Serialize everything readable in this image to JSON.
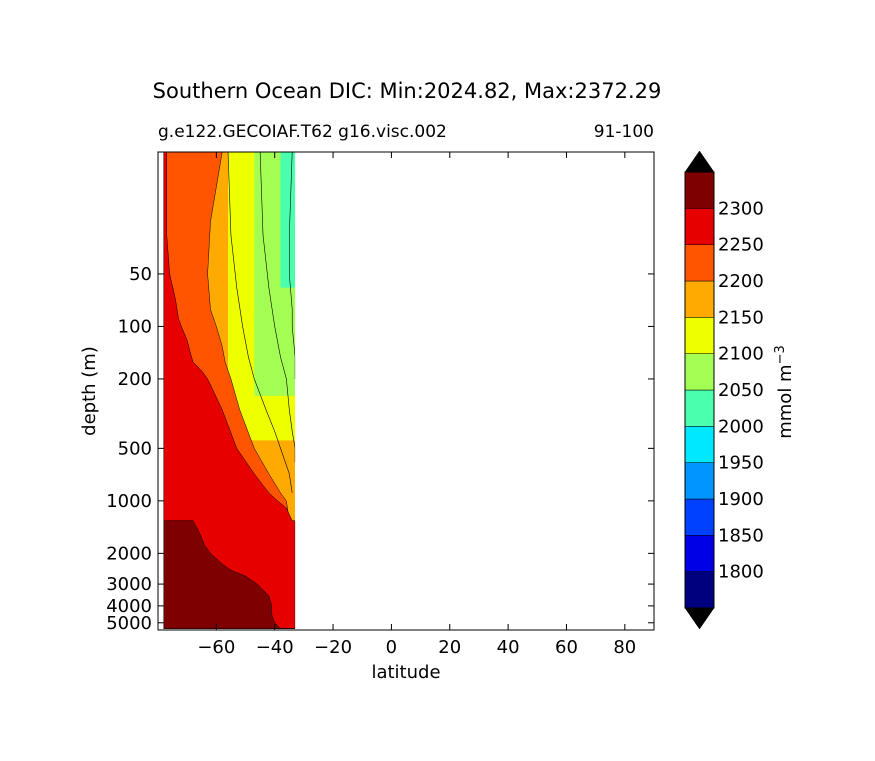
{
  "chart_data": {
    "type": "heatmap",
    "title": "Southern Ocean DIC: Min:2024.82, Max:2372.29",
    "subtitle_left": "g.e122.GECOIAF.T62 g16.visc.002",
    "subtitle_right": "91-100",
    "xlabel": "latitude",
    "ylabel": "depth (m)",
    "xlim": [
      -80,
      90
    ],
    "ylim": [
      10,
      5500
    ],
    "x_ticks": [
      -60,
      -40,
      -20,
      0,
      20,
      40,
      60,
      80
    ],
    "x_tick_labels": [
      "−60",
      "−40",
      "−20",
      "0",
      "20",
      "40",
      "60",
      "80"
    ],
    "y_ticks": [
      50,
      100,
      200,
      500,
      1000,
      2000,
      3000,
      4000,
      5000
    ],
    "y_tick_labels": [
      "50",
      "100",
      "200",
      "500",
      "1000",
      "2000",
      "3000",
      "4000",
      "5000"
    ],
    "colorbar": {
      "label_main": "mmol m",
      "label_sup": "−3",
      "levels": [
        1800,
        1850,
        1900,
        1950,
        2000,
        2050,
        2100,
        2150,
        2200,
        2250,
        2300
      ],
      "level_labels": [
        "1800",
        "1850",
        "1900",
        "1950",
        "2000",
        "2050",
        "2100",
        "2150",
        "2200",
        "2250",
        "2300"
      ],
      "colors": [
        "#00007f",
        "#0000e6",
        "#0040ff",
        "#0095ff",
        "#00e8ff",
        "#4affad",
        "#a3ff54",
        "#eeff00",
        "#ffaa00",
        "#ff5500",
        "#e60000",
        "#7f0000"
      ],
      "extend_color": "#000000"
    },
    "fill_regions": [
      {
        "level": 2250,
        "color": "#ff5500",
        "depth": [
          10,
          25,
          50,
          80,
          100,
          130,
          160,
          200,
          300,
          500,
          700,
          900,
          1000,
          1300
        ],
        "lat": [
          -58,
          -62,
          -63,
          -62,
          -60,
          -58,
          -57,
          -55,
          -52,
          -47,
          -42,
          -38,
          -36,
          -35
        ]
      },
      {
        "level": 2300,
        "color": "#e60000",
        "depth": [
          10,
          30,
          50,
          70,
          90,
          100,
          120,
          140,
          160,
          180,
          200,
          300,
          500,
          700,
          900,
          1000,
          1100,
          1300
        ],
        "lat": [
          -77,
          -77,
          -76,
          -74,
          -73,
          -72,
          -70,
          -69,
          -68,
          -65,
          -63,
          -58,
          -53,
          -47,
          -42,
          -39,
          -36,
          -34
        ]
      },
      {
        "level": 2350,
        "color": "#7f0000",
        "depth": [
          1300,
          1500,
          1800,
          2000,
          2300,
          2500,
          2700,
          3000,
          3500,
          4000,
          4500,
          5000,
          5400
        ],
        "lat": [
          -68,
          -66,
          -64,
          -62,
          -58,
          -55,
          -50,
          -46,
          -42,
          -41,
          -41,
          -40,
          -38
        ]
      }
    ],
    "contour_lines": [
      {
        "level": 2150,
        "depth": [
          10,
          30,
          60,
          100,
          150,
          200,
          300,
          400,
          500,
          600
        ],
        "lat": [
          -45,
          -44,
          -42,
          -40,
          -38,
          -36,
          -35,
          -34,
          -33,
          -33
        ]
      },
      {
        "level": 2200,
        "depth": [
          10,
          30,
          60,
          100,
          150,
          200,
          300,
          400,
          500,
          700,
          900
        ],
        "lat": [
          -56,
          -55,
          -53,
          -51,
          -49,
          -47,
          -43,
          -40,
          -38,
          -35,
          -34
        ]
      },
      {
        "level": 2100,
        "depth": [
          10,
          30,
          50,
          80,
          100,
          150,
          200
        ],
        "lat": [
          -34,
          -35,
          -35,
          -34,
          -34,
          -33,
          -33
        ]
      }
    ]
  }
}
